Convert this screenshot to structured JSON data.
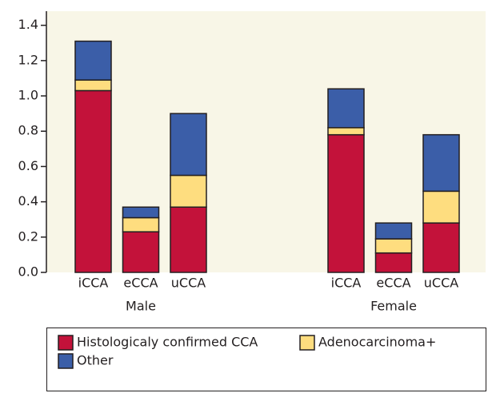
{
  "chart_data": {
    "type": "bar",
    "stacked": true,
    "categories": [
      "iCCA",
      "eCCA",
      "uCCA",
      "iCCA",
      "eCCA",
      "uCCA"
    ],
    "groups": [
      "Male",
      "Female"
    ],
    "series": [
      {
        "name": "Histologicaly confirmed CCA",
        "color": "#c3123a",
        "values": [
          1.03,
          0.23,
          0.37,
          0.78,
          0.11,
          0.28
        ]
      },
      {
        "name": "Adenocarcinoma+",
        "color": "#fedd7f",
        "values": [
          0.06,
          0.08,
          0.18,
          0.04,
          0.08,
          0.18
        ]
      },
      {
        "name": "Other",
        "color": "#3b5ea8",
        "values": [
          0.22,
          0.06,
          0.35,
          0.22,
          0.09,
          0.32
        ]
      }
    ],
    "ylim": [
      0,
      1.48
    ],
    "yticks": [
      {
        "value": 0,
        "label": "0.0"
      },
      0.2,
      0.4,
      0.6,
      0.8,
      {
        "value": 1,
        "label": "1.0"
      },
      1.2,
      1.4
    ]
  }
}
